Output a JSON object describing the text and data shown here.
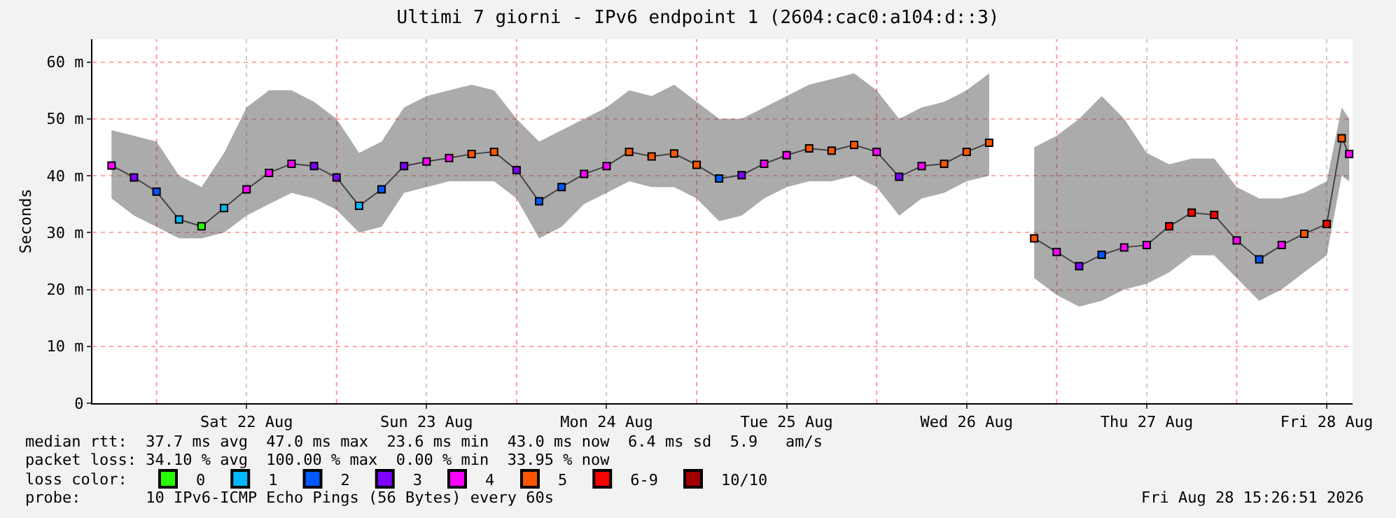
{
  "chart_data": {
    "type": "scatter",
    "title": "Ultimi 7 giorni - IPv6 endpoint 1 (2604:cac0:a104:d::3)",
    "ylabel": "Seconds",
    "legend_title": "loss color:",
    "legend": "bottom",
    "grid": true,
    "x": [
      "2026-08-21T18:00",
      "2026-08-21T21:00",
      "2026-08-22T00:00",
      "2026-08-22T03:00",
      "2026-08-22T06:00",
      "2026-08-22T09:00",
      "2026-08-22T12:00",
      "2026-08-22T15:00",
      "2026-08-22T18:00",
      "2026-08-22T21:00",
      "2026-08-23T00:00",
      "2026-08-23T03:00",
      "2026-08-23T06:00",
      "2026-08-23T09:00",
      "2026-08-23T12:00",
      "2026-08-23T15:00",
      "2026-08-23T18:00",
      "2026-08-23T21:00",
      "2026-08-24T00:00",
      "2026-08-24T03:00",
      "2026-08-24T06:00",
      "2026-08-24T09:00",
      "2026-08-24T12:00",
      "2026-08-24T15:00",
      "2026-08-24T18:00",
      "2026-08-24T21:00",
      "2026-08-25T00:00",
      "2026-08-25T03:00",
      "2026-08-25T06:00",
      "2026-08-25T09:00",
      "2026-08-25T12:00",
      "2026-08-25T15:00",
      "2026-08-25T18:00",
      "2026-08-25T21:00",
      "2026-08-26T00:00",
      "2026-08-26T03:00",
      "2026-08-26T06:00",
      "2026-08-26T09:00",
      "2026-08-26T12:00",
      "2026-08-26T15:00",
      "2026-08-26T18:00",
      "2026-08-26T21:00",
      "2026-08-27T00:00",
      "2026-08-27T03:00",
      "2026-08-27T06:00",
      "2026-08-27T09:00",
      "2026-08-27T12:00",
      "2026-08-27T15:00",
      "2026-08-27T18:00",
      "2026-08-27T21:00",
      "2026-08-28T00:00",
      "2026-08-28T03:00",
      "2026-08-28T06:00",
      "2026-08-28T09:00",
      "2026-08-28T12:00",
      "2026-08-28T14:00",
      "2026-08-28T15:00"
    ],
    "series": [
      {
        "type": "line",
        "color": "#444444",
        "values": [
          41.8,
          39.7,
          37.2,
          32.3,
          31.1,
          34.3,
          37.6,
          40.5,
          42.1,
          41.7,
          39.7,
          34.7,
          37.6,
          41.7,
          42.5,
          43.1,
          43.8,
          44.2,
          41,
          35.5,
          38,
          40.3,
          41.7,
          44.2,
          43.4,
          43.9,
          41.9,
          39.5,
          40.1,
          42.1,
          43.6,
          44.8,
          44.4,
          45.4,
          44.2,
          39.8,
          41.7,
          42.1,
          44.2,
          45.8,
          null,
          29,
          26.6,
          24.1,
          26.1,
          27.4,
          27.8,
          31.1,
          33.5,
          33.1,
          28.6,
          25.3,
          27.8,
          29.8,
          31.5,
          46.6,
          43.8
        ],
        "lower": [
          36,
          33,
          31,
          29,
          29,
          30,
          33,
          35,
          37,
          36,
          34,
          30,
          31,
          37,
          38,
          39,
          39,
          39,
          36,
          29,
          31,
          35,
          37,
          39,
          38,
          38,
          36,
          32,
          33,
          36,
          38,
          39,
          39,
          40,
          38,
          33,
          36,
          37,
          39,
          40,
          null,
          22,
          19,
          17,
          18,
          20,
          21,
          23,
          26,
          26,
          22,
          18,
          20,
          23,
          26,
          40,
          39
        ],
        "upper": [
          48,
          47,
          46,
          40,
          38,
          44,
          52,
          55,
          55,
          53,
          50,
          44,
          46,
          52,
          54,
          55,
          56,
          55,
          50,
          46,
          48,
          50,
          52,
          55,
          54,
          56,
          53,
          50,
          50,
          52,
          54,
          56,
          57,
          58,
          55,
          50,
          52,
          53,
          55,
          58,
          null,
          45,
          47,
          50,
          54,
          50,
          44,
          42,
          43,
          43,
          38,
          36,
          36,
          37,
          39,
          52,
          50
        ]
      },
      {
        "name": "0",
        "color": "#26ff00",
        "marker": "square",
        "values": [
          null,
          null,
          null,
          null,
          31.1,
          null,
          null,
          null,
          null,
          null,
          null,
          null,
          null,
          null,
          null,
          null,
          null,
          null,
          null,
          null,
          null,
          null,
          null,
          null,
          null,
          null,
          null,
          null,
          null,
          null,
          null,
          null,
          null,
          null,
          null,
          null,
          null,
          null,
          null,
          null,
          null,
          null,
          null,
          null,
          null,
          null,
          null,
          null,
          null,
          null,
          null,
          null,
          null,
          null,
          null,
          null,
          null
        ]
      },
      {
        "name": "1",
        "color": "#00b8ff",
        "marker": "square",
        "values": [
          null,
          null,
          null,
          32.3,
          null,
          34.3,
          null,
          null,
          null,
          null,
          null,
          34.7,
          null,
          null,
          null,
          null,
          null,
          null,
          null,
          null,
          null,
          null,
          null,
          null,
          null,
          null,
          null,
          null,
          null,
          null,
          null,
          null,
          null,
          null,
          null,
          null,
          null,
          null,
          null,
          null,
          null,
          null,
          null,
          null,
          null,
          null,
          null,
          null,
          null,
          null,
          null,
          null,
          null,
          null,
          null,
          null,
          null
        ]
      },
      {
        "name": "2",
        "color": "#0059ff",
        "marker": "square",
        "values": [
          null,
          null,
          37.2,
          null,
          null,
          null,
          null,
          null,
          null,
          null,
          null,
          null,
          37.6,
          null,
          null,
          null,
          null,
          null,
          null,
          35.5,
          38,
          null,
          null,
          null,
          null,
          null,
          null,
          39.5,
          null,
          null,
          null,
          null,
          null,
          null,
          null,
          null,
          null,
          null,
          null,
          null,
          null,
          null,
          null,
          null,
          26.1,
          null,
          null,
          null,
          null,
          null,
          null,
          25.3,
          null,
          null,
          null,
          null,
          null
        ]
      },
      {
        "name": "3",
        "color": "#7e00ff",
        "marker": "square",
        "values": [
          null,
          39.7,
          null,
          null,
          null,
          null,
          null,
          null,
          null,
          41.7,
          39.7,
          null,
          null,
          41.7,
          null,
          null,
          null,
          null,
          41,
          null,
          null,
          null,
          null,
          null,
          null,
          null,
          null,
          null,
          40.1,
          null,
          null,
          null,
          null,
          null,
          null,
          39.8,
          null,
          null,
          null,
          null,
          null,
          null,
          null,
          24.1,
          null,
          null,
          null,
          null,
          null,
          null,
          null,
          null,
          null,
          null,
          null,
          null,
          null
        ]
      },
      {
        "name": "4",
        "color": "#ff00ff",
        "marker": "square",
        "values": [
          41.8,
          null,
          null,
          null,
          null,
          null,
          37.6,
          40.5,
          42.1,
          null,
          null,
          null,
          null,
          null,
          42.5,
          43.1,
          null,
          null,
          null,
          null,
          null,
          40.3,
          41.7,
          null,
          null,
          null,
          null,
          null,
          null,
          42.1,
          43.6,
          null,
          null,
          null,
          44.2,
          null,
          41.7,
          null,
          null,
          null,
          null,
          null,
          26.6,
          null,
          null,
          27.4,
          27.8,
          null,
          null,
          null,
          28.6,
          null,
          27.8,
          null,
          null,
          null,
          43.8
        ]
      },
      {
        "name": "5",
        "color": "#ff5500",
        "marker": "square",
        "values": [
          null,
          null,
          null,
          null,
          null,
          null,
          null,
          null,
          null,
          null,
          null,
          null,
          null,
          null,
          null,
          null,
          43.8,
          44.2,
          null,
          null,
          null,
          null,
          null,
          44.2,
          43.4,
          43.9,
          41.9,
          null,
          null,
          null,
          null,
          44.8,
          44.4,
          45.4,
          null,
          null,
          null,
          42.1,
          44.2,
          45.8,
          null,
          29,
          null,
          null,
          null,
          null,
          null,
          null,
          null,
          null,
          null,
          null,
          null,
          29.8,
          null,
          46.6,
          null
        ]
      },
      {
        "name": "6-9",
        "color": "#ff0000",
        "marker": "square",
        "values": [
          null,
          null,
          null,
          null,
          null,
          null,
          null,
          null,
          null,
          null,
          null,
          null,
          null,
          null,
          null,
          null,
          null,
          null,
          null,
          null,
          null,
          null,
          null,
          null,
          null,
          null,
          null,
          null,
          null,
          null,
          null,
          null,
          null,
          null,
          null,
          null,
          null,
          null,
          null,
          null,
          null,
          null,
          null,
          null,
          null,
          null,
          null,
          31.1,
          33.5,
          33.1,
          null,
          null,
          null,
          null,
          31.5,
          null,
          null
        ]
      },
      {
        "name": "10/10",
        "color": "#a10000",
        "marker": "square",
        "values": [
          null,
          null,
          null,
          null,
          null,
          null,
          null,
          null,
          null,
          null,
          null,
          null,
          null,
          null,
          null,
          null,
          null,
          null,
          null,
          null,
          null,
          null,
          null,
          null,
          null,
          null,
          null,
          null,
          null,
          null,
          null,
          null,
          null,
          null,
          null,
          null,
          null,
          null,
          null,
          null,
          null,
          null,
          null,
          null,
          null,
          null,
          null,
          null,
          null,
          null,
          null,
          null,
          null,
          null,
          null,
          null,
          null
        ]
      }
    ],
    "xlim": [
      "2026-08-21T15:27",
      "2026-08-28T15:27"
    ],
    "xticks": [
      {
        "value": "2026-08-22T12:00",
        "label": "Sat 22 Aug"
      },
      {
        "value": "2026-08-23T12:00",
        "label": "Sun 23 Aug"
      },
      {
        "value": "2026-08-24T12:00",
        "label": "Mon 24 Aug"
      },
      {
        "value": "2026-08-25T12:00",
        "label": "Tue 25 Aug"
      },
      {
        "value": "2026-08-26T12:00",
        "label": "Wed 26 Aug"
      },
      {
        "value": "2026-08-27T12:00",
        "label": "Thu 27 Aug"
      },
      {
        "value": "2026-08-28T12:00",
        "label": "Fri 28 Aug"
      }
    ],
    "ylim": [
      0,
      64
    ],
    "yticks": [
      0,
      {
        "value": 10,
        "label": "10 m"
      },
      {
        "value": 20,
        "label": "20 m"
      },
      {
        "value": 30,
        "label": "30 m"
      },
      {
        "value": 40,
        "label": "40 m"
      },
      {
        "value": 50,
        "label": "50 m"
      },
      {
        "value": 60,
        "label": "60 m"
      }
    ],
    "ref_lines": [
      {
        "axis": "x",
        "value": "2026-08-22T00:00",
        "color": "#ff9999",
        "line_style": "dotted"
      },
      {
        "axis": "x",
        "value": "2026-08-23T00:00",
        "color": "#ff9999",
        "line_style": "dotted"
      },
      {
        "axis": "x",
        "value": "2026-08-24T00:00",
        "color": "#ff9999",
        "line_style": "dotted"
      },
      {
        "axis": "x",
        "value": "2026-08-25T00:00",
        "color": "#ff9999",
        "line_style": "dotted"
      },
      {
        "axis": "x",
        "value": "2026-08-26T00:00",
        "color": "#ff9999",
        "line_style": "dotted"
      },
      {
        "axis": "x",
        "value": "2026-08-27T00:00",
        "color": "#ff9999",
        "line_style": "dotted"
      },
      {
        "axis": "x",
        "value": "2026-08-28T00:00",
        "color": "#ff9999",
        "line_style": "dotted"
      }
    ],
    "annotations": [
      "median rtt:  37.7 ms avg  47.0 ms max  23.6 ms min  43.0 ms now  6.4 ms sd  5.9   am/s",
      "packet loss: 34.10 % avg  100.00 % max  0.00 % min  33.95 % now",
      "probe:       10 IPv6-ICMP Echo Pings (56 Bytes) every 60s",
      "Fri Aug 28 15:26:51 2026"
    ]
  }
}
